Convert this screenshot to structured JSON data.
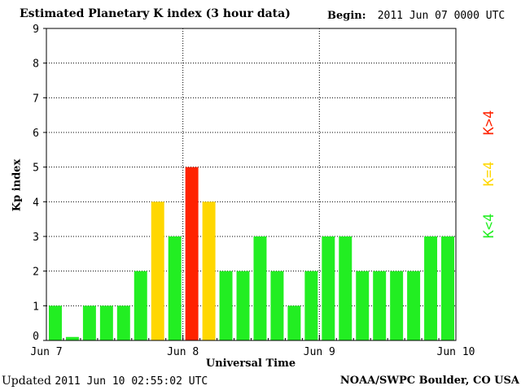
{
  "header": {
    "title": "Estimated Planetary K index (3 hour data)",
    "begin_label": "Begin:",
    "begin_value": "2011 Jun 07 0000 UTC"
  },
  "axes": {
    "ylabel": "Kp index",
    "xlabel": "Universal Time"
  },
  "footer": {
    "updated_label": "Updated",
    "updated_value": "2011 Jun 10 02:55:02 UTC",
    "source": "NOAA/SWPC Boulder, CO USA"
  },
  "legend": [
    {
      "label": "K<4",
      "color": "#22ee22"
    },
    {
      "label": "K=4",
      "color": "#ffd700"
    },
    {
      "label": "K>4",
      "color": "#ff2200"
    }
  ],
  "colors": {
    "low": "#22ee22",
    "mid": "#ffd700",
    "high": "#ff2200"
  },
  "chart_data": {
    "type": "bar",
    "title": "Estimated Planetary K index (3 hour data)",
    "xlabel": "Universal Time",
    "ylabel": "Kp index",
    "ylim": [
      0,
      9
    ],
    "yticks": [
      0,
      1,
      2,
      3,
      4,
      5,
      6,
      7,
      8,
      9
    ],
    "xticks": [
      {
        "label": "Jun 7",
        "index": 0
      },
      {
        "label": "Jun 8",
        "index": 8
      },
      {
        "label": "Jun 9",
        "index": 16
      },
      {
        "label": "Jun 10",
        "index": 24
      }
    ],
    "grid": true,
    "values": [
      1,
      0.1,
      1,
      1,
      1,
      2,
      4,
      3,
      5,
      4,
      2,
      2,
      3,
      2,
      1,
      2,
      3,
      3,
      2,
      2,
      2,
      2,
      3,
      3
    ]
  }
}
